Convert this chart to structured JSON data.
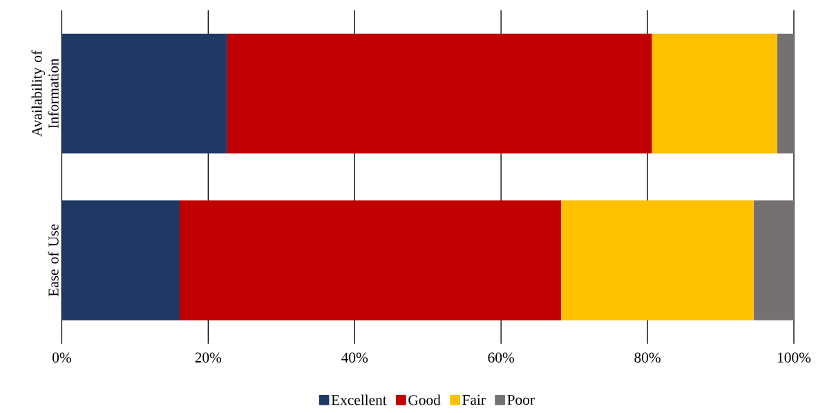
{
  "chart_data": {
    "type": "bar",
    "orientation": "horizontal",
    "stacked": true,
    "categories": [
      "Availability of Information",
      "Ease of Use"
    ],
    "series": [
      {
        "name": "Excellent",
        "color": "#1f3864",
        "values": [
          22.6,
          16.1
        ]
      },
      {
        "name": "Good",
        "color": "#c00000",
        "values": [
          58.0,
          52.1
        ]
      },
      {
        "name": "Fair",
        "color": "#ffc000",
        "values": [
          17.1,
          26.3
        ]
      },
      {
        "name": "Poor",
        "color": "#767171",
        "values": [
          2.3,
          5.5
        ]
      }
    ],
    "xlim": [
      0,
      100
    ],
    "xticks": [
      {
        "value": 0,
        "label": "0%"
      },
      {
        "value": 20,
        "label": "20%"
      },
      {
        "value": 40,
        "label": "40%"
      },
      {
        "value": 60,
        "label": "60%"
      },
      {
        "value": 80,
        "label": "80%"
      },
      {
        "value": 100,
        "label": "100%"
      }
    ],
    "grid": "x",
    "legend": "bottom"
  }
}
